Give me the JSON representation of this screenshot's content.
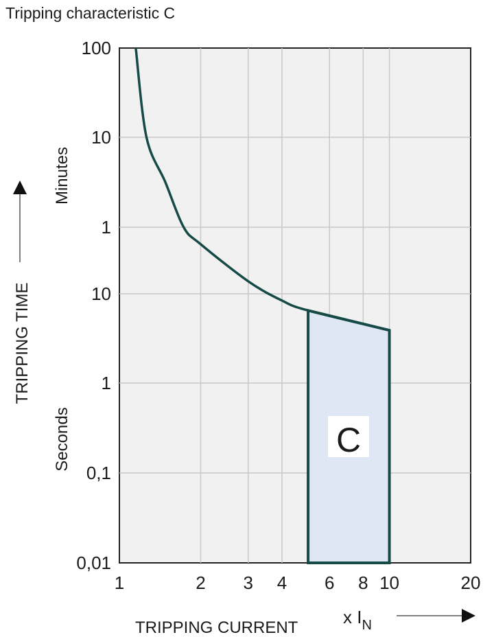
{
  "chart_data": {
    "type": "line",
    "title": "Tripping characteristic C",
    "xlabel": "TRIPPING CURRENT",
    "xunit": "x I",
    "xunit_sub": "N",
    "ylabel": "TRIPPING TIME",
    "y_unit_minutes": "Minutes",
    "y_unit_seconds": "Seconds",
    "x_scale": "log",
    "y_scale": "log",
    "xlim": [
      1,
      20
    ],
    "ylim_seconds": [
      0.01,
      6000
    ],
    "grid": true,
    "x_ticks": [
      {
        "value": 1,
        "label": "1"
      },
      {
        "value": 2,
        "label": "2"
      },
      {
        "value": 3,
        "label": "3"
      },
      {
        "value": 4,
        "label": "4"
      },
      {
        "value": 6,
        "label": "6"
      },
      {
        "value": 8,
        "label": "8"
      },
      {
        "value": 10,
        "label": "10"
      },
      {
        "value": 20,
        "label": "20"
      }
    ],
    "y_ticks": [
      {
        "seconds": 6000,
        "label": "100"
      },
      {
        "seconds": 600,
        "label": "10"
      },
      {
        "seconds": 60,
        "label": "1"
      },
      {
        "seconds": 10,
        "label": "10"
      },
      {
        "seconds": 1,
        "label": "1"
      },
      {
        "seconds": 0.1,
        "label": "0,1"
      },
      {
        "seconds": 0.01,
        "label": "0,01"
      }
    ],
    "curve_seconds": [
      [
        1.15,
        6000
      ],
      [
        1.26,
        600
      ],
      [
        1.48,
        190
      ],
      [
        1.73,
        60
      ],
      [
        2,
        38
      ],
      [
        3,
        14
      ],
      [
        4,
        8.4
      ],
      [
        5,
        6.5
      ],
      [
        10,
        3.9
      ]
    ],
    "band": {
      "label": "C",
      "x_from": 5,
      "x_to": 10,
      "bottom_seconds": 0.01
    },
    "colors": {
      "curve": "#164a46",
      "band_fill": "#e0e7f4",
      "plot_bg": "#f1f1f1",
      "grid": "#c8c8c8"
    }
  }
}
